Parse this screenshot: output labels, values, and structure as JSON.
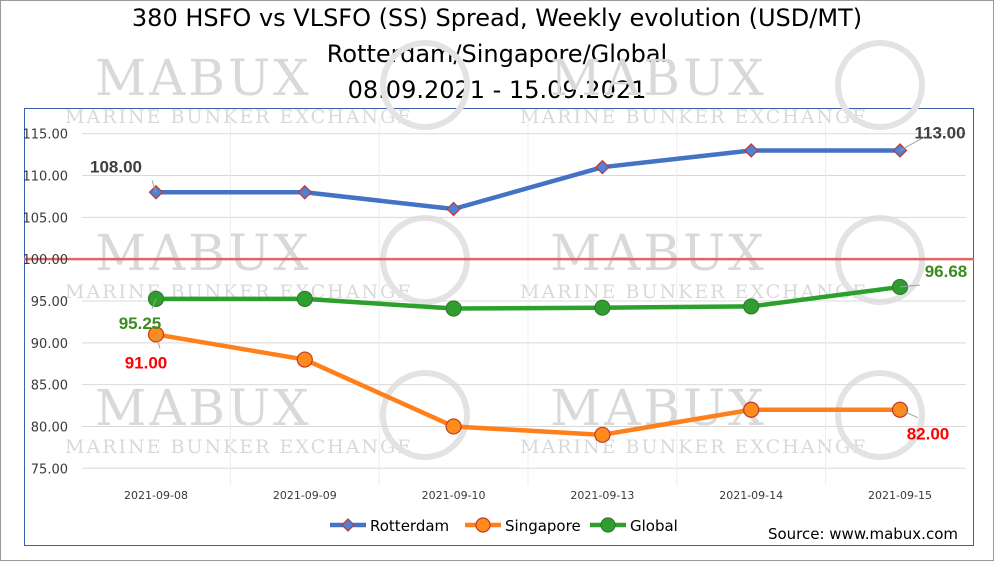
{
  "watermark": {
    "big": "MABUX",
    "small": "MARINE BUNKER EXCHANGE"
  },
  "source": "Source: www.mabux.com",
  "chart_data": {
    "type": "line",
    "title": "380 HSFO vs VLSFO (SS) Spread, Weekly evolution (USD/MT)",
    "subtitle": "Rotterdam/Singapore/Global",
    "date_range": "08.09.2021 - 15.09.2021",
    "categories": [
      "2021-09-08",
      "2021-09-09",
      "2021-09-10",
      "2021-09-13",
      "2021-09-14",
      "2021-09-15"
    ],
    "yticks": [
      "75.00",
      "80.00",
      "85.00",
      "90.00",
      "95.00",
      "100.00",
      "105.00",
      "110.00",
      "115.00"
    ],
    "ylim": [
      73,
      117
    ],
    "grid": true,
    "reference_line": {
      "value": 100,
      "color": "#e06666"
    },
    "legend_position": "bottom",
    "series": [
      {
        "name": "Rotterdam",
        "values": [
          108,
          108,
          106,
          111,
          113,
          113
        ],
        "color": "#4472c4",
        "marker": "diamond",
        "marker_fill": "#4f81d6",
        "marker_edge": "#c0392b",
        "label_color": "#404040",
        "labels": {
          "first": "108.00",
          "last": "113.00"
        }
      },
      {
        "name": "Singapore",
        "values": [
          91,
          88,
          80,
          79,
          82,
          82
        ],
        "color": "#ff7f1a",
        "marker": "circle",
        "marker_fill": "#ff8c1a",
        "marker_edge": "#c0392b",
        "label_color": "#ff0000",
        "labels": {
          "first": "91.00",
          "last": "82.00"
        }
      },
      {
        "name": "Global",
        "values": [
          95.25,
          95.25,
          94.1,
          94.2,
          94.35,
          96.68
        ],
        "color": "#2ca02c",
        "marker": "circle",
        "marker_fill": "#2f9e2f",
        "marker_edge": "#2f7d2f",
        "label_color": "#3a8c1f",
        "labels": {
          "first": "95.25",
          "last": "96.68"
        }
      }
    ]
  }
}
